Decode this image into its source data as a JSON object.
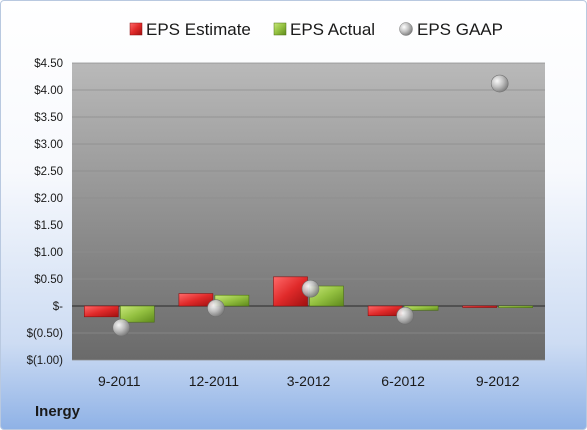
{
  "company": "Inergy",
  "colors": {
    "estimate": "#d42a2a",
    "actual": "#8fbd3a",
    "gaap": "#b8b8b8",
    "plot_top": "#b5b5b5",
    "plot_bottom": "#6b6b6b"
  },
  "chart_data": {
    "type": "bar",
    "categories": [
      "9-2011",
      "12-2011",
      "3-2012",
      "6-2012",
      "9-2012"
    ],
    "series": [
      {
        "name": "EPS Estimate",
        "kind": "bar",
        "values": [
          -0.2,
          0.23,
          0.54,
          -0.18,
          -0.02
        ]
      },
      {
        "name": "EPS Actual",
        "kind": "bar",
        "values": [
          -0.3,
          0.2,
          0.37,
          -0.08,
          -0.03
        ]
      },
      {
        "name": "EPS GAAP",
        "kind": "marker",
        "values": [
          -0.4,
          -0.04,
          0.32,
          -0.18,
          4.12
        ]
      }
    ],
    "ylim": [
      -1.0,
      4.5
    ],
    "yticks": [
      -1.0,
      -0.5,
      0,
      0.5,
      1.0,
      1.5,
      2.0,
      2.5,
      3.0,
      3.5,
      4.0,
      4.5
    ],
    "ytick_labels": [
      "$(1.00)",
      "$(0.50)",
      "$-",
      "$0.50",
      "$1.00",
      "$1.50",
      "$2.00",
      "$2.50",
      "$3.00",
      "$3.50",
      "$4.00",
      "$4.50"
    ],
    "grid": true,
    "legend": "top"
  }
}
